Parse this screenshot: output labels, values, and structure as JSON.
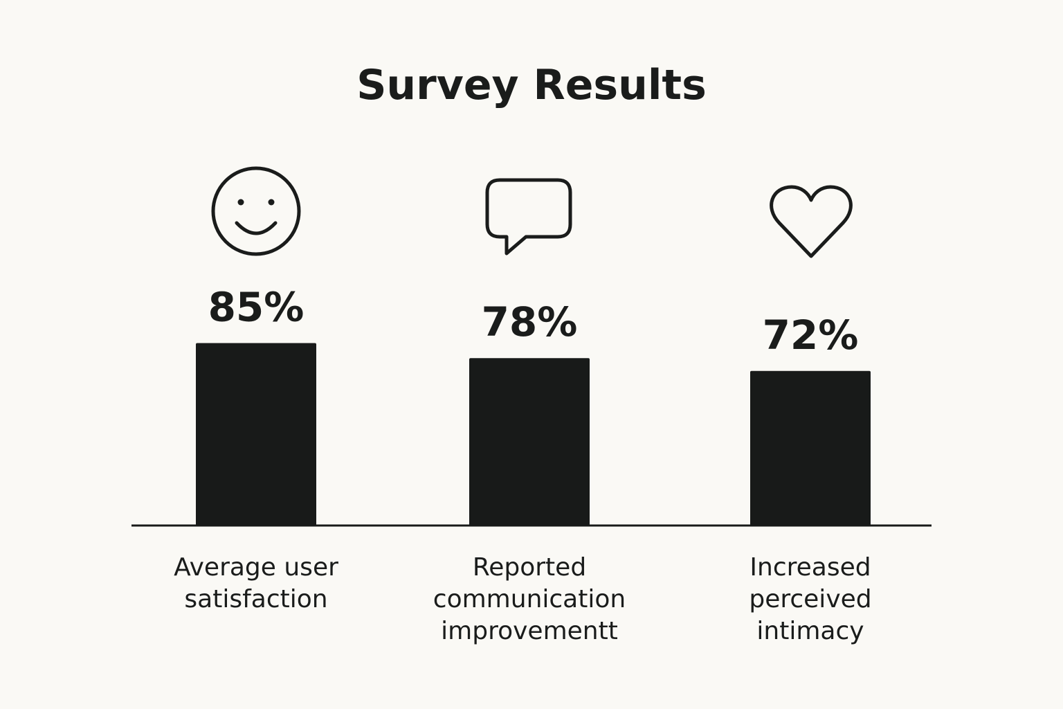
{
  "chart_data": {
    "type": "bar",
    "title": "Survey Results",
    "xlabel": "",
    "ylabel": "",
    "ylim": [
      0,
      100
    ],
    "grid": false,
    "value_suffix": "%",
    "categories": [
      [
        "Average user",
        "satisfaction"
      ],
      [
        "Reported",
        "communication",
        "improvementt"
      ],
      [
        "Increased",
        "perceived",
        "intimacy"
      ]
    ],
    "values": [
      85,
      78,
      72
    ],
    "data_labels": [
      "85%",
      "78%",
      "72%"
    ],
    "icons": [
      "smiley-face-icon",
      "speech-bubble-icon",
      "heart-icon"
    ],
    "bar_color": "#181a19",
    "axis_color": "#181a19",
    "background": "#faf9f5"
  }
}
